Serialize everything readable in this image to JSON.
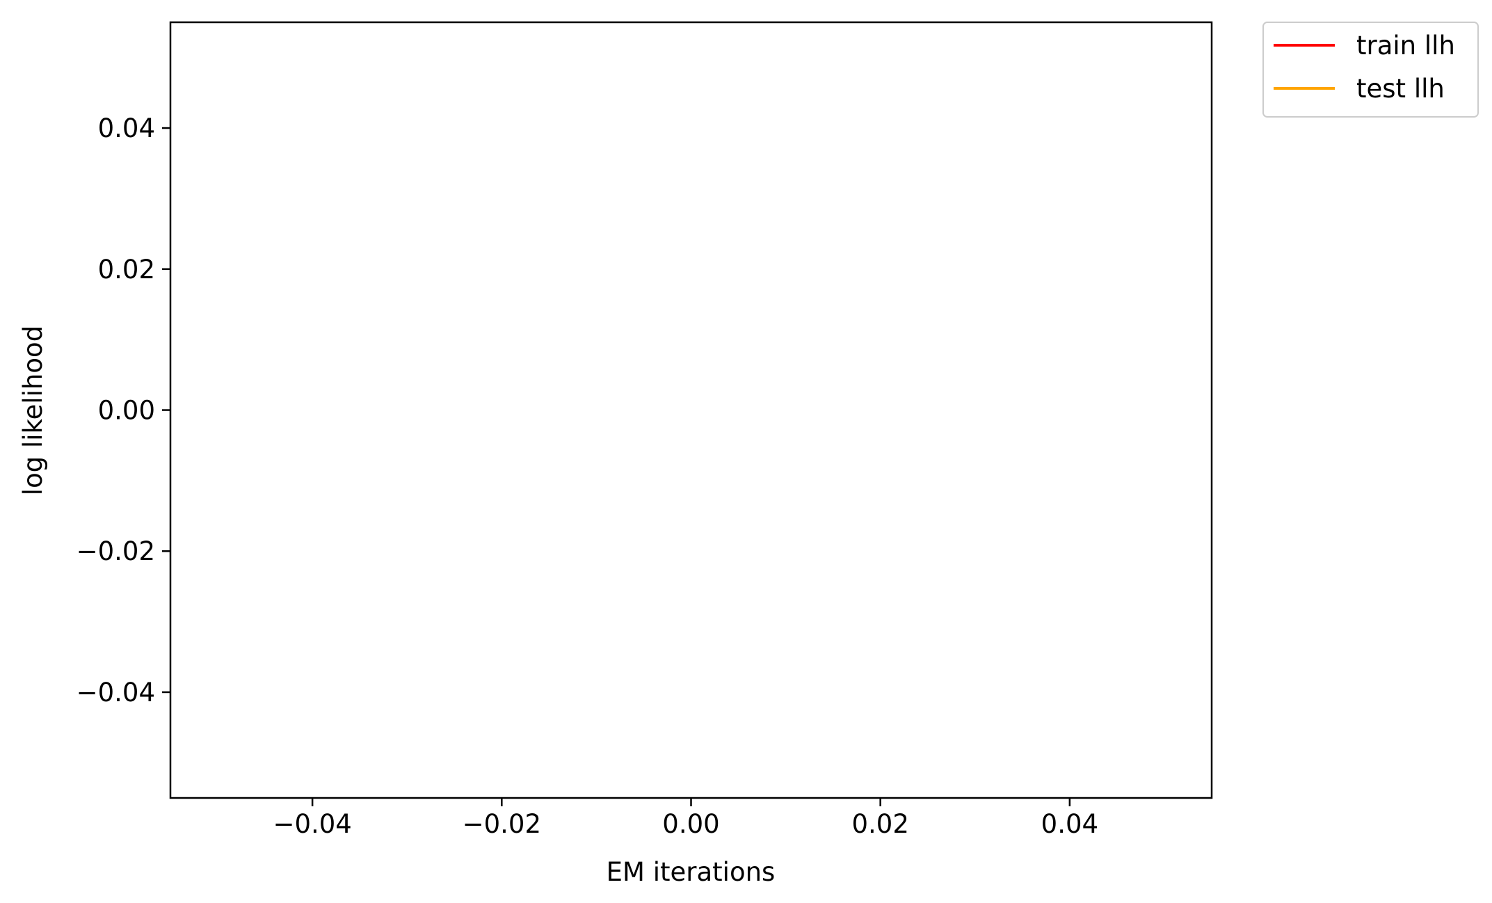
{
  "chart_data": {
    "type": "line",
    "title": "",
    "xlabel": "EM iterations",
    "ylabel": "log likelihood",
    "xlim": [
      -0.055,
      0.055
    ],
    "ylim": [
      -0.055,
      0.055
    ],
    "x_ticks": [
      -0.04,
      -0.02,
      0.0,
      0.02,
      0.04
    ],
    "x_tick_labels": [
      "−0.04",
      "−0.02",
      "0.00",
      "0.02",
      "0.04"
    ],
    "y_ticks": [
      -0.04,
      -0.02,
      0.0,
      0.02,
      0.04
    ],
    "y_tick_labels": [
      "−0.04",
      "−0.02",
      "0.00",
      "0.02",
      "0.04"
    ],
    "grid": false,
    "legend_position": "outside upper right",
    "series": [
      {
        "name": "train llh",
        "color": "#ff0000",
        "x": [],
        "y": []
      },
      {
        "name": "test llh",
        "color": "#ffa500",
        "x": [],
        "y": []
      }
    ]
  }
}
